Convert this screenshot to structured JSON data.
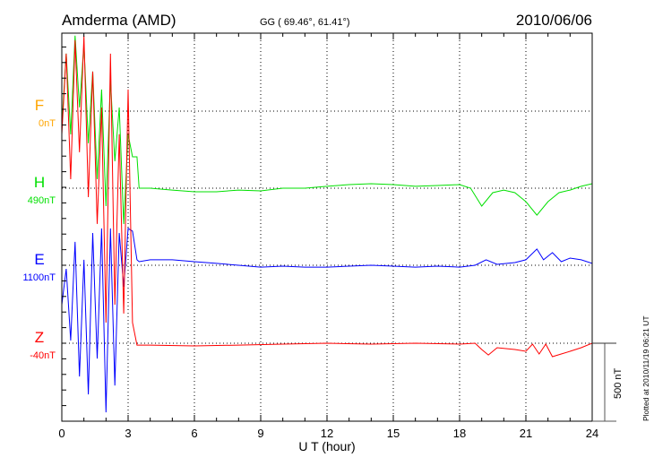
{
  "chart_data": {
    "type": "line",
    "title": "Amderma (AMD)",
    "subtitle": "GG ( 69.46°,  61.41°)",
    "date": "2010/06/06",
    "xlabel": "U T (hour)",
    "xlim": [
      0,
      24
    ],
    "xticks": [
      "0",
      "3",
      "6",
      "9",
      "12",
      "15",
      "18",
      "21",
      "24"
    ],
    "grid": true,
    "scale_bar_label": "500 nT",
    "scale_bar_nT": 500,
    "footer": "Plotted at 2010/11/19 06:21  UT",
    "series": [
      {
        "name": "F",
        "baseline_label": "0nT",
        "color": "#ffa500",
        "points": []
      },
      {
        "name": "H",
        "baseline_label": "490nT",
        "color": "#00e000",
        "points": [
          [
            0,
            402
          ],
          [
            0.2,
            863
          ],
          [
            0.4,
            345
          ],
          [
            0.6,
            978
          ],
          [
            0.8,
            518
          ],
          [
            1.0,
            920
          ],
          [
            1.2,
            288
          ],
          [
            1.4,
            748
          ],
          [
            1.6,
            58
          ],
          [
            1.8,
            633
          ],
          [
            2.0,
            -115
          ],
          [
            2.2,
            690
          ],
          [
            2.4,
            173
          ],
          [
            2.6,
            518
          ],
          [
            2.8,
            -230
          ],
          [
            3.0,
            345
          ],
          [
            3.2,
            201
          ],
          [
            3.4,
            201
          ],
          [
            3.5,
            0
          ],
          [
            4,
            0
          ],
          [
            5,
            -12
          ],
          [
            6,
            -23
          ],
          [
            7,
            -23
          ],
          [
            8,
            -12
          ],
          [
            9,
            -17
          ],
          [
            10,
            0
          ],
          [
            11,
            0
          ],
          [
            12,
            12
          ],
          [
            13,
            23
          ],
          [
            14,
            29
          ],
          [
            15,
            23
          ],
          [
            16,
            12
          ],
          [
            17,
            17
          ],
          [
            18,
            23
          ],
          [
            18.5,
            0
          ],
          [
            19,
            -115
          ],
          [
            19.5,
            -29
          ],
          [
            20,
            -12
          ],
          [
            20.5,
            -29
          ],
          [
            21,
            -86
          ],
          [
            21.5,
            -173
          ],
          [
            22,
            -86
          ],
          [
            22.5,
            -29
          ],
          [
            23,
            -12
          ],
          [
            23.5,
            12
          ],
          [
            24,
            29
          ]
        ]
      },
      {
        "name": "E",
        "baseline_label": "1100nT",
        "color": "#0000ff",
        "points": [
          [
            0,
            -253
          ],
          [
            0.2,
            -23
          ],
          [
            0.4,
            -483
          ],
          [
            0.6,
            150
          ],
          [
            0.8,
            -713
          ],
          [
            1.0,
            35
          ],
          [
            1.2,
            -828
          ],
          [
            1.4,
            207
          ],
          [
            1.6,
            -598
          ],
          [
            1.8,
            236
          ],
          [
            2.0,
            -943
          ],
          [
            2.2,
            236
          ],
          [
            2.4,
            -771
          ],
          [
            2.6,
            207
          ],
          [
            2.8,
            -138
          ],
          [
            3.0,
            236
          ],
          [
            3.2,
            219
          ],
          [
            3.4,
            35
          ],
          [
            3.5,
            23
          ],
          [
            4,
            35
          ],
          [
            5,
            35
          ],
          [
            6,
            23
          ],
          [
            7,
            12
          ],
          [
            8,
            0
          ],
          [
            9,
            -12
          ],
          [
            10,
            -6
          ],
          [
            11,
            -12
          ],
          [
            12,
            -12
          ],
          [
            13,
            -6
          ],
          [
            14,
            0
          ],
          [
            15,
            -6
          ],
          [
            16,
            -12
          ],
          [
            17,
            -6
          ],
          [
            18,
            -12
          ],
          [
            18.7,
            0
          ],
          [
            19.2,
            35
          ],
          [
            19.7,
            6
          ],
          [
            20.5,
            17
          ],
          [
            21,
            35
          ],
          [
            21.5,
            104
          ],
          [
            21.8,
            35
          ],
          [
            22.2,
            81
          ],
          [
            22.6,
            23
          ],
          [
            23,
            46
          ],
          [
            23.5,
            35
          ],
          [
            24,
            12
          ]
        ]
      },
      {
        "name": "Z",
        "baseline_label": "-40nT",
        "color": "#ff0000",
        "points": [
          [
            0,
            1340
          ],
          [
            0.2,
            1857
          ],
          [
            0.4,
            1052
          ],
          [
            0.6,
            1943
          ],
          [
            0.8,
            1225
          ],
          [
            1.0,
            1972
          ],
          [
            1.2,
            937
          ],
          [
            1.4,
            1742
          ],
          [
            1.6,
            765
          ],
          [
            1.8,
            1512
          ],
          [
            2.0,
            132
          ],
          [
            2.2,
            1857
          ],
          [
            2.4,
            247
          ],
          [
            2.6,
            1340
          ],
          [
            2.8,
            190
          ],
          [
            3.0,
            1627
          ],
          [
            3.2,
            132
          ],
          [
            3.4,
            -12
          ],
          [
            4,
            -12
          ],
          [
            6,
            -17
          ],
          [
            8,
            -12
          ],
          [
            10,
            -6
          ],
          [
            12,
            0
          ],
          [
            14,
            -6
          ],
          [
            16,
            0
          ],
          [
            18,
            -6
          ],
          [
            18.7,
            0
          ],
          [
            19,
            -40
          ],
          [
            19.3,
            -75
          ],
          [
            19.7,
            -29
          ],
          [
            20.5,
            -40
          ],
          [
            21,
            -52
          ],
          [
            21.3,
            -6
          ],
          [
            21.6,
            -69
          ],
          [
            21.9,
            -6
          ],
          [
            22.2,
            -86
          ],
          [
            22.6,
            -69
          ],
          [
            23,
            -52
          ],
          [
            23.5,
            -29
          ],
          [
            24,
            0
          ]
        ]
      }
    ]
  }
}
